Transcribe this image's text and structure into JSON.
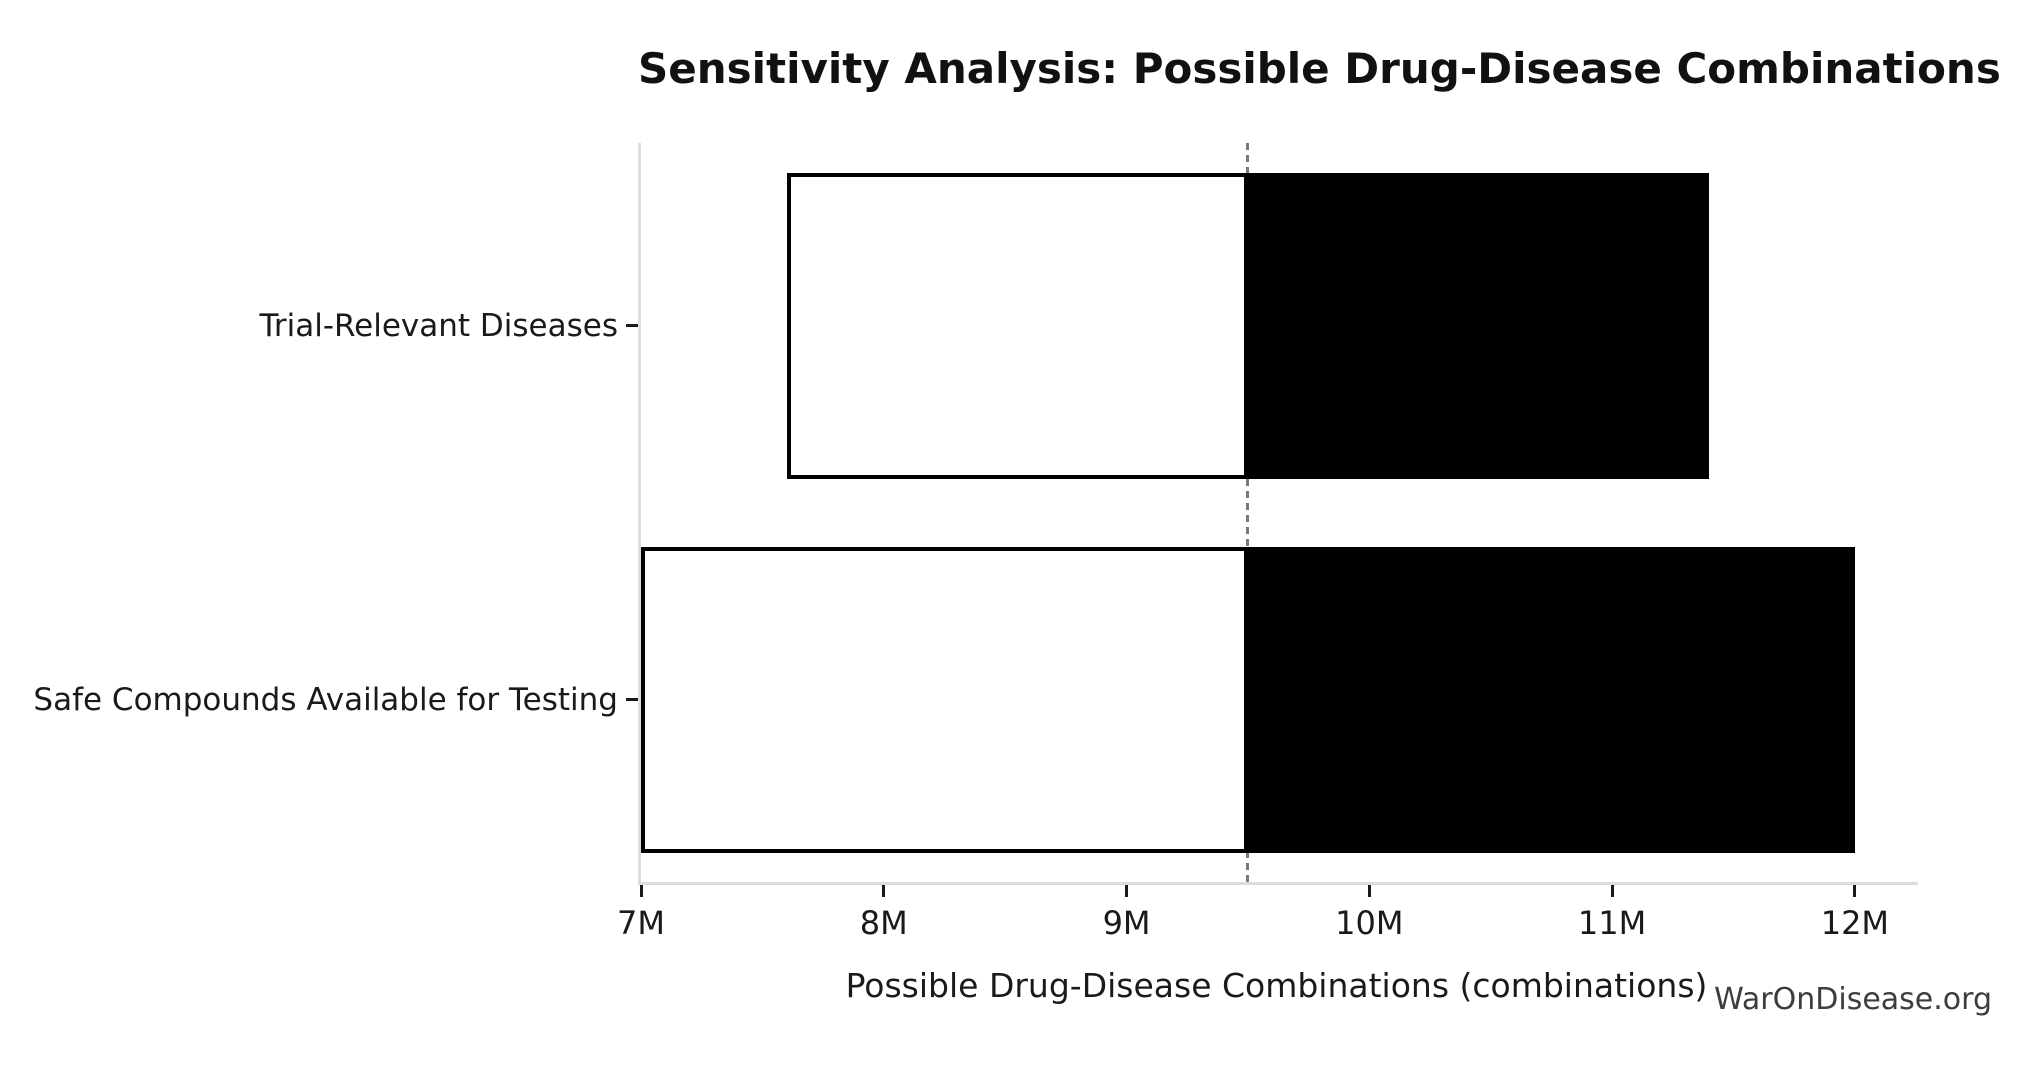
{
  "title": "Sensitivity Analysis: Possible Drug-Disease Combinations",
  "watermark": "WarOnDisease.org",
  "chart_data": {
    "type": "bar",
    "subtype": "tornado-sensitivity",
    "orientation": "horizontal",
    "title": "Sensitivity Analysis: Possible Drug-Disease Combinations",
    "xlabel": "Possible Drug-Disease Combinations (combinations)",
    "ylabel": "",
    "grid": false,
    "legend": "none",
    "baseline": 9500000,
    "xlim": [
      7000000,
      12260000
    ],
    "x_ticks": [
      {
        "value": 7000000,
        "label": "7M"
      },
      {
        "value": 8000000,
        "label": "8M"
      },
      {
        "value": 9000000,
        "label": "9M"
      },
      {
        "value": 10000000,
        "label": "10M"
      },
      {
        "value": 11000000,
        "label": "11M"
      },
      {
        "value": 12000000,
        "label": "12M"
      }
    ],
    "categories": [
      "Trial-Relevant Diseases",
      "Safe Compounds Available for Testing"
    ],
    "bars": [
      {
        "label": "Trial-Relevant Diseases",
        "low": 7600000,
        "high": 11400000
      },
      {
        "label": "Safe Compounds Available for Testing",
        "low": 7000000,
        "high": 12000000
      }
    ],
    "series": [
      {
        "name": "low",
        "values": [
          7600000,
          7000000
        ]
      },
      {
        "name": "high",
        "values": [
          11400000,
          12000000
        ]
      }
    ],
    "colors": {
      "low_fill": "#ffffff",
      "high_fill": "#000000",
      "bar_edge": "#000000",
      "baseline_line": "#7a7a7a",
      "spine": "#dcdcdc",
      "tick": "#1a1a1a",
      "text": "#1a1a1a",
      "watermark_text": "#3d3d3d"
    }
  }
}
